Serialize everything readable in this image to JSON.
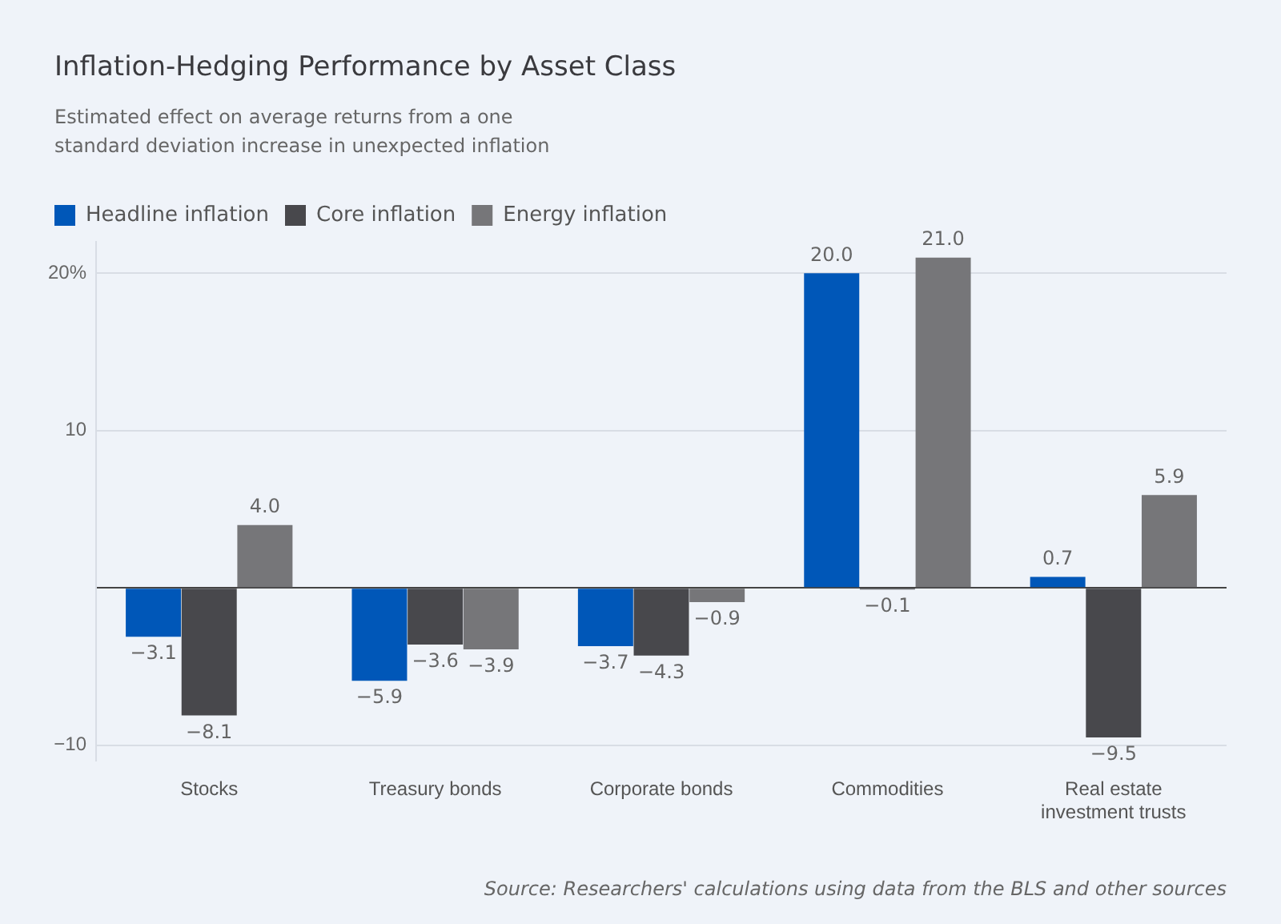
{
  "chart_data": {
    "type": "bar",
    "title": "Inflation-Hedging Performance by Asset Class",
    "subtitle": "Estimated effect on average returns from a one standard deviation increase in unexpected inflation",
    "categories": [
      "Stocks",
      "Treasury bonds",
      "Corporate bonds",
      "Commodities",
      "Real estate investment trusts"
    ],
    "series": [
      {
        "name": "Headline inflation",
        "color": "#0057b8",
        "values": [
          -3.1,
          -5.9,
          -3.7,
          20.0,
          0.7
        ],
        "value_labels": [
          "−3.1",
          "−5.9",
          "−3.7",
          "20.0",
          "0.7"
        ]
      },
      {
        "name": "Core inflation",
        "color": "#48484c",
        "values": [
          -8.1,
          -3.6,
          -4.3,
          -0.1,
          -9.5
        ],
        "value_labels": [
          "−8.1",
          "−3.6",
          "−4.3",
          "−0.1",
          "−9.5"
        ]
      },
      {
        "name": "Energy inflation",
        "color": "#767679",
        "values": [
          4.0,
          -3.9,
          -0.9,
          21.0,
          5.9
        ],
        "value_labels": [
          "4.0",
          "−3.9",
          "−0.9",
          "21.0",
          "5.9"
        ]
      }
    ],
    "ylim": [
      -11,
      22
    ],
    "yticks": [
      {
        "value": -10,
        "label": "−10"
      },
      {
        "value": 0,
        "label": null
      },
      10,
      {
        "value": 20,
        "label": "20%"
      }
    ],
    "grid": "y",
    "legend": "top left",
    "annotations": [
      "Source: Researchers' calculations using data from the BLS and other sources"
    ]
  }
}
